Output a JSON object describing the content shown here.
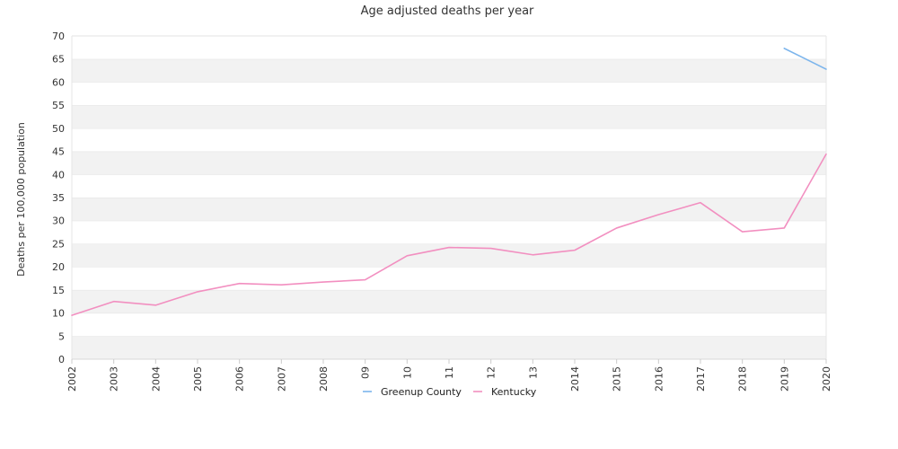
{
  "chart_data": {
    "type": "line",
    "title": "Age adjusted deaths per year",
    "ylabel": "Deaths per 100,000 population",
    "xlabel": "",
    "ylim": [
      0,
      70
    ],
    "yticks": [
      0,
      5,
      10,
      15,
      20,
      25,
      30,
      35,
      40,
      45,
      50,
      55,
      60,
      65,
      70
    ],
    "categories": [
      "2002",
      "2003",
      "2004",
      "2005",
      "2006",
      "2007",
      "2008",
      "09",
      "10",
      "11",
      "12",
      "13",
      "2014",
      "2015",
      "2016",
      "2017",
      "2018",
      "2019",
      "2020"
    ],
    "grid": "alternating horizontal bands",
    "legend_position": "bottom",
    "series": [
      {
        "name": "Greenup County",
        "color": "#7cb5ec",
        "values": [
          null,
          null,
          null,
          null,
          null,
          null,
          null,
          null,
          null,
          null,
          null,
          null,
          null,
          null,
          null,
          null,
          null,
          67.3,
          62.8
        ]
      },
      {
        "name": "Kentucky",
        "color": "#f28fc0",
        "values": [
          9.5,
          12.5,
          11.7,
          14.6,
          16.4,
          16.1,
          16.7,
          17.2,
          22.4,
          24.2,
          24.0,
          22.6,
          23.6,
          28.4,
          31.3,
          33.9,
          27.6,
          28.4,
          44.4
        ]
      }
    ]
  }
}
